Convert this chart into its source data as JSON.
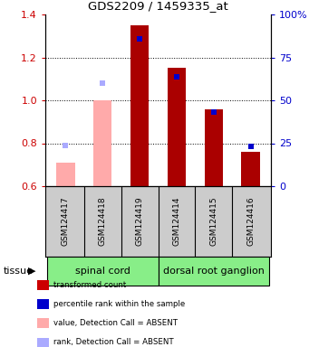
{
  "title": "GDS2209 / 1459335_at",
  "samples": [
    "GSM124417",
    "GSM124418",
    "GSM124419",
    "GSM124414",
    "GSM124415",
    "GSM124416"
  ],
  "tissue_groups": [
    {
      "label": "spinal cord",
      "indices": [
        0,
        1,
        2
      ]
    },
    {
      "label": "dorsal root ganglion",
      "indices": [
        3,
        4,
        5
      ]
    }
  ],
  "bar_values": [
    0.71,
    1.0,
    1.35,
    1.15,
    0.96,
    0.76
  ],
  "bar_colors": [
    "#ffaaaa",
    "#ffaaaa",
    "#aa0000",
    "#aa0000",
    "#aa0000",
    "#aa0000"
  ],
  "rank_values_left": [
    0.79,
    1.08,
    1.285,
    1.11,
    0.945,
    0.785
  ],
  "rank_colors": [
    "#aaaaff",
    "#aaaaff",
    "#0000cc",
    "#0000cc",
    "#0000cc",
    "#0000cc"
  ],
  "ylim_left": [
    0.6,
    1.4
  ],
  "ylim_right": [
    0,
    100
  ],
  "yticks_left": [
    0.6,
    0.8,
    1.0,
    1.2,
    1.4
  ],
  "yticks_right": [
    0,
    25,
    50,
    75,
    100
  ],
  "ytick_right_labels": [
    "0",
    "25",
    "50",
    "75",
    "100%"
  ],
  "left_tick_color": "#cc0000",
  "right_tick_color": "#0000cc",
  "bar_width": 0.5,
  "rank_marker_size": 4,
  "tissue_row_color": "#88ee88",
  "sample_row_color": "#cccccc",
  "legend_items": [
    {
      "color": "#cc0000",
      "label": "transformed count"
    },
    {
      "color": "#0000cc",
      "label": "percentile rank within the sample"
    },
    {
      "color": "#ffaaaa",
      "label": "value, Detection Call = ABSENT"
    },
    {
      "color": "#aaaaff",
      "label": "rank, Detection Call = ABSENT"
    }
  ]
}
